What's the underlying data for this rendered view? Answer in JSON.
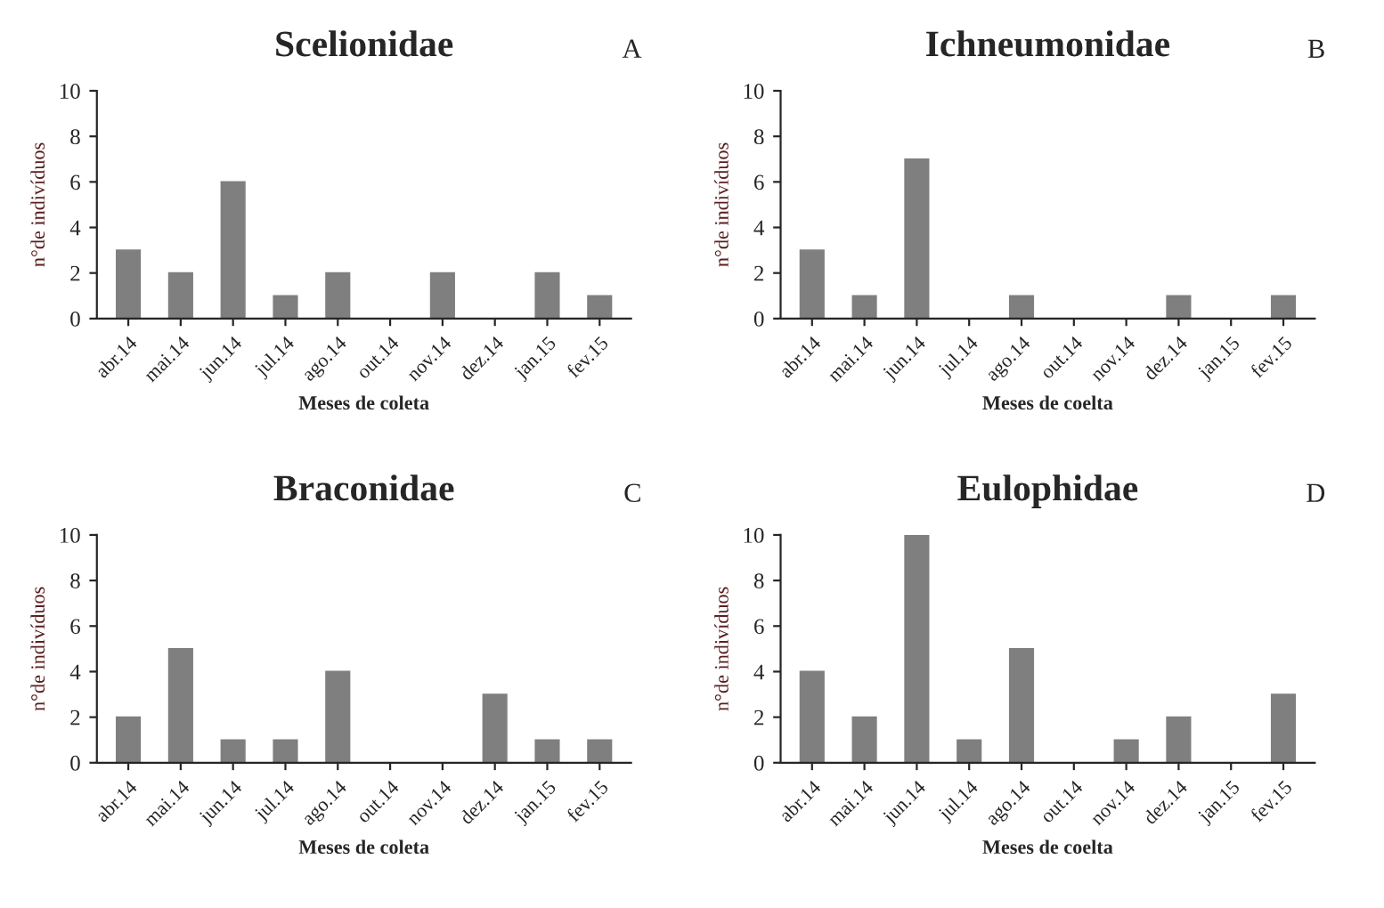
{
  "chart_data": [
    {
      "type": "bar",
      "title": "Scelionidae",
      "annotations": [
        "A"
      ],
      "xlabel": "Meses de coleta",
      "ylabel": "n°de indivíduos",
      "categories": [
        "abr.14",
        "mai.14",
        "jun.14",
        "jul.14",
        "ago.14",
        "out.14",
        "nov.14",
        "dez.14",
        "jan.15",
        "fev.15"
      ],
      "values": [
        3,
        2,
        6,
        1,
        2,
        0,
        2,
        0,
        2,
        1
      ],
      "color": "#7f7f7f",
      "ylim": [
        0,
        10
      ],
      "yticks": [
        0,
        2,
        4,
        6,
        8,
        10
      ]
    },
    {
      "type": "bar",
      "title": "Ichneumonidae",
      "annotations": [
        "B"
      ],
      "xlabel": "Meses de coelta",
      "ylabel": "n°de indivíduos",
      "categories": [
        "abr.14",
        "mai.14",
        "jun.14",
        "jul.14",
        "ago.14",
        "out.14",
        "nov.14",
        "dez.14",
        "jan.15",
        "fev.15"
      ],
      "values": [
        3,
        1,
        7,
        0,
        1,
        0,
        0,
        1,
        0,
        1
      ],
      "color": "#7f7f7f",
      "ylim": [
        0,
        10
      ],
      "yticks": [
        0,
        2,
        4,
        6,
        8,
        10
      ]
    },
    {
      "type": "bar",
      "title": "Braconidae",
      "annotations": [
        "C"
      ],
      "xlabel": "Meses de coleta",
      "ylabel": "n°de indivíduos",
      "categories": [
        "abr.14",
        "mai.14",
        "jun.14",
        "jul.14",
        "ago.14",
        "out.14",
        "nov.14",
        "dez.14",
        "jan.15",
        "fev.15"
      ],
      "values": [
        2,
        5,
        1,
        1,
        4,
        0,
        0,
        3,
        1,
        1
      ],
      "color": "#7f7f7f",
      "ylim": [
        0,
        10
      ],
      "yticks": [
        0,
        2,
        4,
        6,
        8,
        10
      ]
    },
    {
      "type": "bar",
      "title": "Eulophidae",
      "annotations": [
        "D"
      ],
      "xlabel": "Meses de coelta",
      "ylabel": "n°de indivíduos",
      "categories": [
        "abr.14",
        "mai.14",
        "jun.14",
        "jul.14",
        "ago.14",
        "out.14",
        "nov.14",
        "dez.14",
        "jan.15",
        "fev.15"
      ],
      "values": [
        4,
        2,
        10,
        1,
        5,
        0,
        1,
        2,
        0,
        3
      ],
      "color": "#7f7f7f",
      "ylim": [
        0,
        10
      ],
      "yticks": [
        0,
        2,
        4,
        6,
        8,
        10
      ]
    }
  ]
}
